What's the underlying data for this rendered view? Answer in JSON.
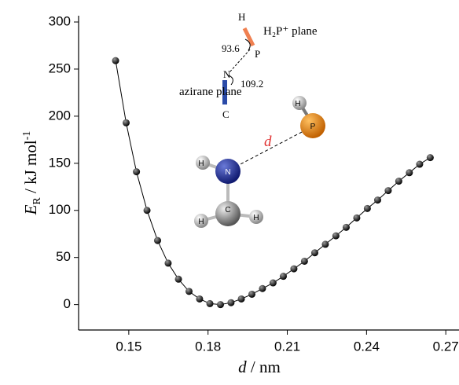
{
  "chart_data": {
    "type": "line",
    "x_label": {
      "symbol": "d",
      "unit": " / nm"
    },
    "y_label": {
      "symbol": "E",
      "subscript": "R",
      "unit": " / kJ mol",
      "superscript": "-1"
    },
    "x": [
      0.145,
      0.149,
      0.1529,
      0.1569,
      0.1609,
      0.1649,
      0.1688,
      0.1728,
      0.1768,
      0.1807,
      0.1847,
      0.1887,
      0.1926,
      0.1966,
      0.2006,
      0.2046,
      0.2085,
      0.2125,
      0.2165,
      0.2204,
      0.2244,
      0.2284,
      0.2323,
      0.2363,
      0.2403,
      0.2442,
      0.2482,
      0.2522,
      0.2562,
      0.2601,
      0.2641
    ],
    "series": [
      {
        "color": "#000000",
        "values": [
          259,
          193,
          141,
          100,
          68,
          44,
          27,
          14,
          6,
          1,
          0,
          2,
          6,
          11,
          17,
          23,
          30,
          38,
          46,
          55,
          64,
          73,
          82,
          92,
          102,
          111,
          121,
          131,
          140,
          149,
          156
        ]
      }
    ],
    "xlim": [
      0.131,
      0.275
    ],
    "ylim": [
      -27,
      300
    ],
    "xticks": [
      0.15,
      0.18,
      0.21,
      0.24,
      0.27
    ],
    "yticks": [
      0,
      50,
      100,
      150,
      200,
      250,
      300
    ],
    "annotations": [
      "H₂P⁺ plane",
      "azirane plane",
      "93.6",
      "109.2",
      "H",
      "P",
      "N",
      "C",
      "d",
      "H",
      "N",
      "C",
      "H",
      "H",
      "H",
      "P"
    ]
  }
}
